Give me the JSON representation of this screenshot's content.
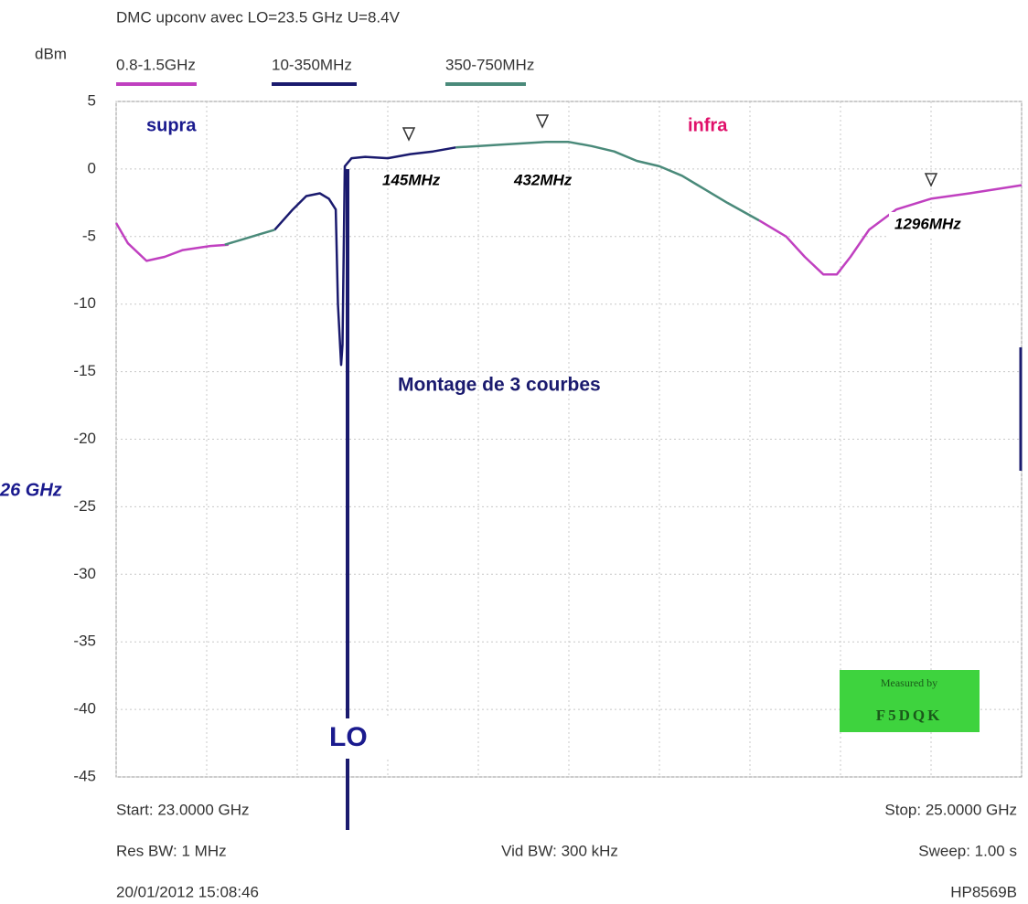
{
  "chart_data": {
    "type": "line",
    "title": "DMC upconv avec LO=23.5 GHz U=8.4V",
    "y_label": "dBm",
    "xlim": [
      23,
      25
    ],
    "xticks": [
      23,
      23.2,
      23.4,
      23.6,
      23.8,
      24,
      24.2,
      24.4,
      24.6,
      24.8,
      25
    ],
    "ylim": [
      -45,
      5
    ],
    "yticks": [
      5,
      0,
      -5,
      -10,
      -15,
      -20,
      -25,
      -30,
      -35,
      -40,
      -45
    ],
    "grid": true,
    "series": [
      {
        "name": "0.8-1.5GHz",
        "color": "#c040c0",
        "x": [
          23.0,
          23.026,
          23.067,
          23.107,
          23.147,
          23.208,
          23.248,
          null,
          24.42,
          24.48,
          24.521,
          24.562,
          24.592,
          24.622,
          24.663,
          24.723,
          24.8,
          24.885,
          25.0
        ],
        "values": [
          -4.0,
          -5.5,
          -6.8,
          -6.5,
          -6.0,
          -5.7,
          -5.6,
          null,
          -3.8,
          -5.0,
          -6.5,
          -7.8,
          -7.8,
          -6.5,
          -4.5,
          -3.0,
          -2.2,
          -1.8,
          -1.2
        ]
      },
      {
        "name": "10-350MHz",
        "color": "#1a1a6e",
        "x": [
          23.35,
          23.39,
          23.42,
          23.45,
          23.47,
          23.485,
          23.49,
          23.497,
          23.5,
          23.505,
          23.52,
          23.55,
          23.6,
          23.65,
          23.7,
          23.75
        ],
        "values": [
          -4.5,
          -3.0,
          -2.0,
          -1.8,
          -2.2,
          -3.0,
          -10.0,
          -14.5,
          -13.0,
          0.2,
          0.8,
          0.9,
          0.8,
          1.1,
          1.3,
          1.6
        ]
      },
      {
        "name": "350-750MHz",
        "color": "#4a8a7a",
        "x": [
          23.24,
          23.28,
          23.32,
          23.35,
          null,
          23.75,
          23.85,
          23.95,
          24.0,
          24.05,
          24.1,
          24.15,
          24.2,
          24.25,
          24.3,
          24.35,
          24.42
        ],
        "values": [
          -5.6,
          -5.2,
          -4.8,
          -4.5,
          null,
          1.6,
          1.8,
          2.0,
          2.0,
          1.7,
          1.3,
          0.6,
          0.2,
          -0.5,
          -1.5,
          -2.5,
          -3.8
        ]
      }
    ],
    "annotations": [
      "supra",
      "infra",
      "Montage de 3 courbes",
      "LO",
      "26 GHz",
      "145MHz",
      "432MHz",
      "1296MHz"
    ],
    "footer": [
      "Start: 23.0000 GHz",
      "Stop: 25.0000 GHz",
      "Res BW: 1 MHz",
      "Vid BW: 300 kHz",
      "Sweep: 1.00 s",
      "20/01/2012 15:08:46",
      "HP8569B"
    ],
    "badge": [
      "Measured by",
      "F5DQK"
    ]
  }
}
